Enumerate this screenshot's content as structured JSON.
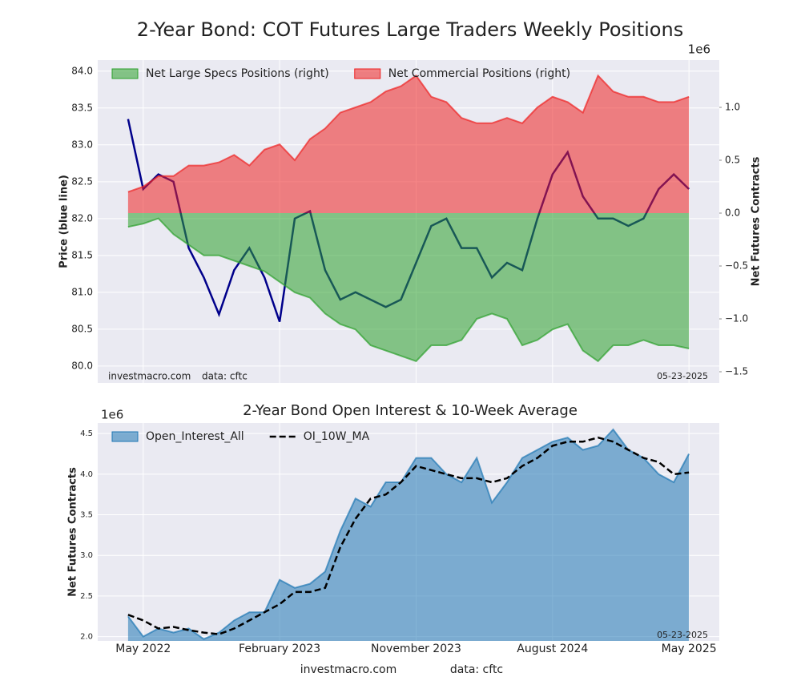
{
  "chart_data": [
    {
      "type": "line",
      "title": "2-Year Bond: COT Futures Large Traders Weekly Positions",
      "x": [
        "2022-04",
        "2022-05",
        "2022-06",
        "2022-07",
        "2022-08",
        "2022-09",
        "2022-10",
        "2022-11",
        "2022-12",
        "2023-01",
        "2023-02",
        "2023-03",
        "2023-04",
        "2023-05",
        "2023-06",
        "2023-07",
        "2023-08",
        "2023-09",
        "2023-10",
        "2023-11",
        "2023-12",
        "2024-01",
        "2024-02",
        "2024-03",
        "2024-04",
        "2024-05",
        "2024-06",
        "2024-07",
        "2024-08",
        "2024-09",
        "2024-10",
        "2024-11",
        "2024-12",
        "2025-01",
        "2025-02",
        "2025-03",
        "2025-04",
        "2025-05"
      ],
      "xlim": [
        "2022-02",
        "2025-07"
      ],
      "xticks": [
        "2022-05",
        "2023-02",
        "2023-11",
        "2024-08",
        "2025-05"
      ],
      "ylabel": "Price (blue line)",
      "ylim": [
        79.77,
        84.15
      ],
      "yticks": [
        {
          "value": 80,
          "label": "80.0"
        },
        {
          "value": 80.5,
          "label": "80.5"
        },
        {
          "value": 81,
          "label": "81.0"
        },
        {
          "value": 81.5,
          "label": "81.5"
        },
        {
          "value": 82,
          "label": "82.0"
        },
        {
          "value": 82.5,
          "label": "82.5"
        },
        {
          "value": 83,
          "label": "83.0"
        },
        {
          "value": 83.5,
          "label": "83.5"
        },
        {
          "value": 84,
          "label": "84.0"
        }
      ],
      "y2label": "Net Futures Contracts",
      "y2_offset": "1e6",
      "y2lim": [
        -1.606,
        1.447
      ],
      "y2ticks": [
        {
          "value": -1.5,
          "label": "−1.5"
        },
        {
          "value": -1,
          "label": "−1.0"
        },
        {
          "value": -0.5,
          "label": "−0.5"
        },
        {
          "value": 0,
          "label": "0.0"
        },
        {
          "value": 0.5,
          "label": "0.5"
        },
        {
          "value": 1,
          "label": "1.0"
        }
      ],
      "grid": true,
      "legend": "upper left",
      "series": [
        {
          "color": "#00008b",
          "values": [
            83.35,
            82.4,
            82.6,
            82.5,
            81.6,
            81.2,
            80.7,
            81.3,
            81.6,
            81.2,
            80.6,
            82.0,
            82.1,
            81.3,
            80.9,
            81.0,
            80.9,
            80.8,
            80.9,
            81.4,
            81.9,
            82.0,
            81.6,
            81.6,
            81.2,
            81.4,
            81.3,
            82.0,
            82.6,
            82.9,
            82.3,
            82.0,
            82.0,
            81.9,
            82.0,
            82.4,
            82.6,
            82.4
          ]
        },
        {
          "name": "Net Large Specs Positions (right)",
          "color": "#2ca02c",
          "axis": "y2",
          "fill": true,
          "values": [
            -0.13,
            -0.1,
            -0.05,
            -0.2,
            -0.3,
            -0.4,
            -0.4,
            -0.45,
            -0.5,
            -0.55,
            -0.65,
            -0.75,
            -0.8,
            -0.95,
            -1.05,
            -1.1,
            -1.25,
            -1.3,
            -1.35,
            -1.4,
            -1.25,
            -1.25,
            -1.2,
            -1.0,
            -0.95,
            -1.0,
            -1.25,
            -1.2,
            -1.1,
            -1.05,
            -1.3,
            -1.4,
            -1.25,
            -1.25,
            -1.2,
            -1.25,
            -1.25,
            -1.28
          ]
        },
        {
          "name": "Net Commercial Positions (right)",
          "color": "#ee2222",
          "axis": "y2",
          "fill": true,
          "values": [
            0.2,
            0.25,
            0.35,
            0.35,
            0.45,
            0.45,
            0.48,
            0.55,
            0.45,
            0.6,
            0.65,
            0.5,
            0.7,
            0.8,
            0.95,
            1.0,
            1.05,
            1.15,
            1.2,
            1.3,
            1.1,
            1.05,
            0.9,
            0.85,
            0.85,
            0.9,
            0.85,
            1.0,
            1.1,
            1.05,
            0.95,
            1.3,
            1.15,
            1.1,
            1.1,
            1.05,
            1.05,
            1.1
          ]
        }
      ],
      "source": "investmacro.com",
      "source_data": "data: cftc",
      "date": "05-23-2025"
    },
    {
      "type": "area",
      "title": "2-Year Bond Open Interest & 10-Week Average",
      "x": [
        "2022-04",
        "2022-05",
        "2022-06",
        "2022-07",
        "2022-08",
        "2022-09",
        "2022-10",
        "2022-11",
        "2022-12",
        "2023-01",
        "2023-02",
        "2023-03",
        "2023-04",
        "2023-05",
        "2023-06",
        "2023-07",
        "2023-08",
        "2023-09",
        "2023-10",
        "2023-11",
        "2023-12",
        "2024-01",
        "2024-02",
        "2024-03",
        "2024-04",
        "2024-05",
        "2024-06",
        "2024-07",
        "2024-08",
        "2024-09",
        "2024-10",
        "2024-11",
        "2024-12",
        "2025-01",
        "2025-02",
        "2025-03",
        "2025-04",
        "2025-05"
      ],
      "xlim": [
        "2022-02",
        "2025-07"
      ],
      "xticks": [
        {
          "value": "2022-05",
          "label": "May 2022"
        },
        {
          "value": "2023-02",
          "label": "February 2023"
        },
        {
          "value": "2023-11",
          "label": "November 2023"
        },
        {
          "value": "2024-08",
          "label": "August 2024"
        },
        {
          "value": "2025-05",
          "label": "May 2025"
        }
      ],
      "ylabel": "Net Futures Contracts",
      "y_offset": "1e6",
      "ylim": [
        1.947,
        4.63
      ],
      "yticks": [
        {
          "value": 2,
          "label": "2.0"
        },
        {
          "value": 2.5,
          "label": "2.5"
        },
        {
          "value": 3,
          "label": "3.0"
        },
        {
          "value": 3.5,
          "label": "3.5"
        },
        {
          "value": 4,
          "label": "4.0"
        },
        {
          "value": 4.5,
          "label": "4.5"
        }
      ],
      "grid": true,
      "legend": "upper left",
      "series": [
        {
          "name": "Open_Interest_All",
          "color": "#1f77b4",
          "fill": true,
          "values": [
            2.25,
            2.0,
            2.1,
            2.05,
            2.1,
            1.97,
            2.05,
            2.2,
            2.3,
            2.3,
            2.7,
            2.6,
            2.65,
            2.8,
            3.3,
            3.7,
            3.6,
            3.9,
            3.9,
            4.2,
            4.2,
            4.0,
            3.9,
            4.2,
            3.65,
            3.9,
            4.2,
            4.3,
            4.4,
            4.45,
            4.3,
            4.35,
            4.55,
            4.3,
            4.2,
            4.0,
            3.9,
            4.25
          ]
        },
        {
          "name": "OI_10W_MA",
          "color": "#000000",
          "dash": true,
          "values": [
            2.27,
            2.2,
            2.1,
            2.12,
            2.08,
            2.05,
            2.03,
            2.1,
            2.2,
            2.3,
            2.4,
            2.55,
            2.55,
            2.6,
            3.1,
            3.45,
            3.7,
            3.75,
            3.9,
            4.1,
            4.05,
            4.0,
            3.95,
            3.95,
            3.9,
            3.95,
            4.1,
            4.2,
            4.35,
            4.4,
            4.4,
            4.45,
            4.4,
            4.3,
            4.2,
            4.15,
            4.0,
            4.02
          ]
        }
      ],
      "source": "investmacro.com",
      "source_data": "data: cftc",
      "date": "05-23-2025"
    }
  ]
}
